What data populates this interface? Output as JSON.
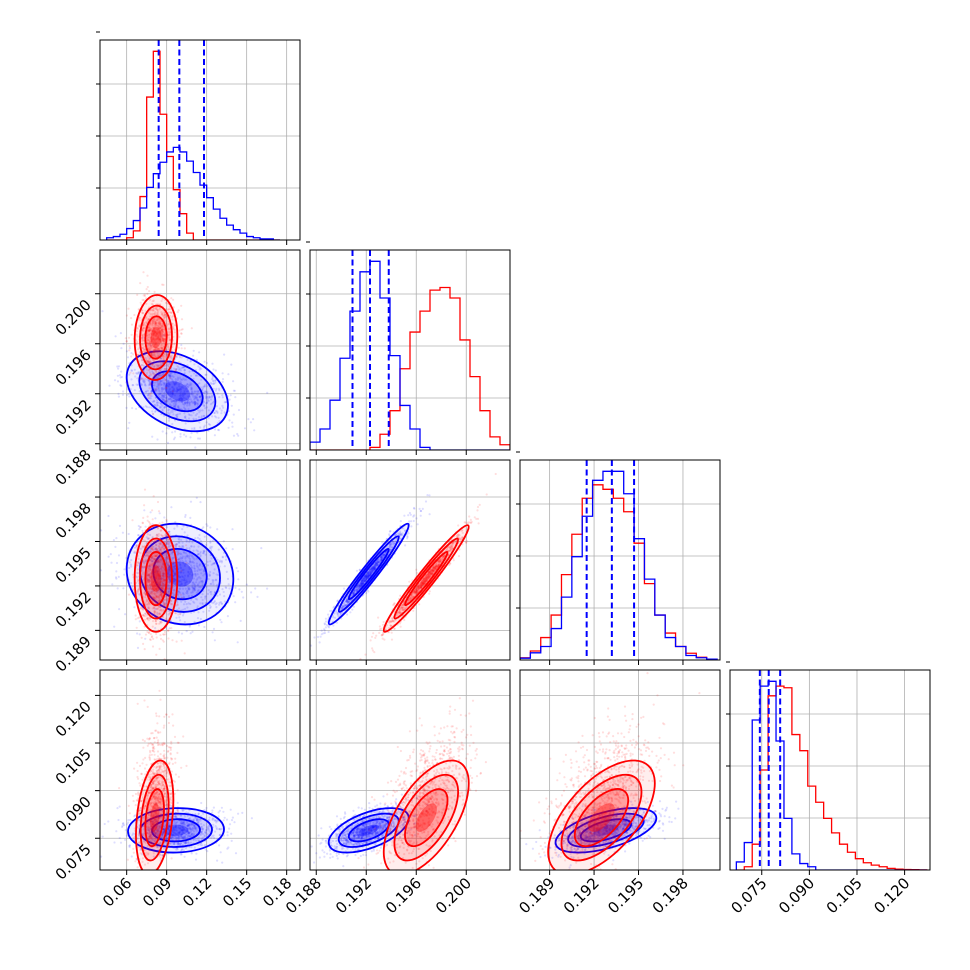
{
  "chart_data": {
    "type": "corner",
    "grid": true,
    "series": [
      {
        "color": "#0000ff"
      },
      {
        "color": "#ff0000"
      }
    ],
    "parameters": [
      {
        "range": [
          0.04,
          0.19
        ],
        "ticks": [
          0.06,
          0.09,
          0.12,
          0.15,
          0.18
        ],
        "tick_labels": [
          "0.06",
          "0.09",
          "0.12",
          "0.15",
          "0.18"
        ],
        "quantiles": [
          0.084,
          0.0995,
          0.118
        ]
      },
      {
        "range": [
          0.1875,
          0.2035
        ],
        "ticks": [
          0.188,
          0.192,
          0.196,
          0.2
        ],
        "tick_labels": [
          "0.188",
          "0.192",
          "0.196",
          "0.200"
        ],
        "quantiles": [
          0.1909,
          0.1923,
          0.1938
        ]
      },
      {
        "range": [
          0.187,
          0.2005
        ],
        "ticks": [
          0.189,
          0.192,
          0.195,
          0.198
        ],
        "tick_labels": [
          "0.189",
          "0.192",
          "0.195",
          "0.198"
        ],
        "quantiles": [
          0.1915,
          0.1932,
          0.1947
        ]
      },
      {
        "range": [
          0.065,
          0.128
        ],
        "ticks": [
          0.075,
          0.09,
          0.105,
          0.12
        ],
        "tick_labels": [
          "0.075",
          "0.090",
          "0.105",
          "0.120"
        ],
        "quantiles": [
          0.0744,
          0.0772,
          0.0808
        ]
      }
    ],
    "histograms": [
      {
        "param": 0,
        "edges": [
          0.045,
          0.05,
          0.055,
          0.06,
          0.065,
          0.07,
          0.075,
          0.08,
          0.085,
          0.09,
          0.095,
          0.1,
          0.105,
          0.11,
          0.115,
          0.12,
          0.125,
          0.13,
          0.135,
          0.14,
          0.145,
          0.15,
          0.155,
          0.16,
          0.165,
          0.17,
          0.175
        ],
        "blue": [
          0.2,
          0.3,
          0.5,
          1.0,
          1.7,
          2.8,
          4.6,
          5.8,
          6.8,
          7.7,
          8.1,
          7.7,
          6.9,
          5.9,
          4.8,
          3.7,
          2.7,
          1.9,
          1.3,
          0.9,
          0.6,
          0.3,
          0.2,
          0.1,
          0.1,
          0.0
        ],
        "red": [
          0.0,
          0.0,
          0.0,
          0.2,
          0.8,
          3.8,
          12.5,
          16.5,
          11.0,
          7.3,
          4.4,
          2.3,
          0.6,
          0.0,
          0.0,
          0.0,
          0.0,
          0.0,
          0.0,
          0.0,
          0.0,
          0.0,
          0.0,
          0.0,
          0.0,
          0.0
        ]
      },
      {
        "param": 1,
        "edges": [
          0.1875,
          0.1883,
          0.1891,
          0.1899,
          0.1907,
          0.1915,
          0.1923,
          0.1931,
          0.1939,
          0.1947,
          0.1955,
          0.1963,
          0.1971,
          0.1979,
          0.1987,
          0.1995,
          0.2003,
          0.2011,
          0.2019,
          0.2027,
          0.2035
        ],
        "blue": [
          0.3,
          0.8,
          1.9,
          3.5,
          5.3,
          6.8,
          7.2,
          5.8,
          3.6,
          1.7,
          0.8,
          0.1,
          0.0,
          0.0,
          0.0,
          0.0,
          0.0,
          0.0,
          0.0,
          0.0
        ],
        "red": [
          0.0,
          0.0,
          0.0,
          0.0,
          0.0,
          0.0,
          0.1,
          0.6,
          1.5,
          3.1,
          4.5,
          5.3,
          6.1,
          6.2,
          5.8,
          4.2,
          2.8,
          1.5,
          0.5,
          0.2
        ]
      },
      {
        "param": 2,
        "edges": [
          0.187,
          0.1877,
          0.1884,
          0.1891,
          0.1898,
          0.1905,
          0.1912,
          0.1919,
          0.1926,
          0.1933,
          0.194,
          0.1947,
          0.1954,
          0.1961,
          0.1968,
          0.1975,
          0.1982,
          0.1989,
          0.1996,
          0.2003
        ],
        "blue": [
          0.04,
          0.16,
          0.3,
          0.7,
          1.4,
          2.3,
          3.2,
          4.0,
          4.2,
          4.2,
          3.7,
          2.7,
          1.8,
          1.0,
          0.5,
          0.3,
          0.1,
          0.05,
          0.02
        ],
        "red": [
          0.05,
          0.2,
          0.5,
          1.0,
          1.9,
          2.8,
          3.6,
          3.9,
          3.8,
          3.6,
          3.3,
          2.6,
          1.7,
          1.0,
          0.6,
          0.3,
          0.15,
          0.06,
          0.02
        ]
      },
      {
        "param": 3,
        "edges": [
          0.067,
          0.0695,
          0.072,
          0.0745,
          0.077,
          0.0795,
          0.082,
          0.0845,
          0.087,
          0.0895,
          0.092,
          0.0945,
          0.097,
          0.0995,
          0.102,
          0.1045,
          0.107,
          0.1095,
          0.112,
          0.1145,
          0.117,
          0.1195,
          0.122,
          0.1245,
          0.127
        ],
        "blue": [
          0.5,
          1.7,
          9.3,
          11.4,
          11.7,
          8.0,
          3.2,
          1.0,
          0.4,
          0.2,
          0.0,
          0.0,
          0.0,
          0.0,
          0.0,
          0.0,
          0.0,
          0.0,
          0.0,
          0.0,
          0.0,
          0.0,
          0.0,
          0.0
        ],
        "red": [
          0.0,
          0.2,
          1.6,
          6.2,
          10.8,
          11.4,
          11.3,
          8.4,
          7.4,
          5.2,
          4.2,
          3.2,
          2.3,
          1.6,
          1.1,
          0.7,
          0.45,
          0.3,
          0.2,
          0.1,
          0.05,
          0.03,
          0.02,
          0.01
        ]
      }
    ],
    "posteriors_2d": [
      {
        "x_param": 0,
        "y_param": 1,
        "blue": {
          "mean": [
            0.098,
            0.1922
          ],
          "sd": [
            0.019,
            0.0016
          ],
          "rho": -0.35
        },
        "red": {
          "mean": [
            0.082,
            0.1965
          ],
          "sd": [
            0.008,
            0.0017
          ],
          "rho": 0.05
        }
      },
      {
        "x_param": 0,
        "y_param": 2,
        "blue": {
          "mean": [
            0.1,
            0.1928
          ],
          "sd": [
            0.02,
            0.0017
          ],
          "rho": -0.1
        },
        "red": {
          "mean": [
            0.082,
            0.1925
          ],
          "sd": [
            0.008,
            0.0018
          ],
          "rho": 0.0
        }
      },
      {
        "x_param": 1,
        "y_param": 2,
        "blue": {
          "mean": [
            0.1922,
            0.1928
          ],
          "sd": [
            0.0016,
            0.0017
          ],
          "rho": 0.97
        },
        "red": {
          "mean": [
            0.1968,
            0.1925
          ],
          "sd": [
            0.0017,
            0.0018
          ],
          "rho": 0.97
        }
      },
      {
        "x_param": 0,
        "y_param": 3,
        "blue": {
          "mean": [
            0.097,
            0.0775
          ],
          "sd": [
            0.018,
            0.0035
          ],
          "rho": 0.05
        },
        "red": {
          "mean": [
            0.081,
            0.0815
          ],
          "sd": [
            0.007,
            0.009
          ],
          "rho": 0.3
        }
      },
      {
        "x_param": 1,
        "y_param": 3,
        "blue": {
          "mean": [
            0.1922,
            0.0775
          ],
          "sd": [
            0.0016,
            0.0035
          ],
          "rho": 0.55
        },
        "red": {
          "mean": [
            0.1968,
            0.0815
          ],
          "sd": [
            0.0017,
            0.009
          ],
          "rho": 0.6
        }
      },
      {
        "x_param": 2,
        "y_param": 3,
        "blue": {
          "mean": [
            0.1928,
            0.0775
          ],
          "sd": [
            0.0017,
            0.0035
          ],
          "rho": 0.55
        },
        "red": {
          "mean": [
            0.1925,
            0.0815
          ],
          "sd": [
            0.0018,
            0.009
          ],
          "rho": 0.6
        }
      }
    ]
  }
}
